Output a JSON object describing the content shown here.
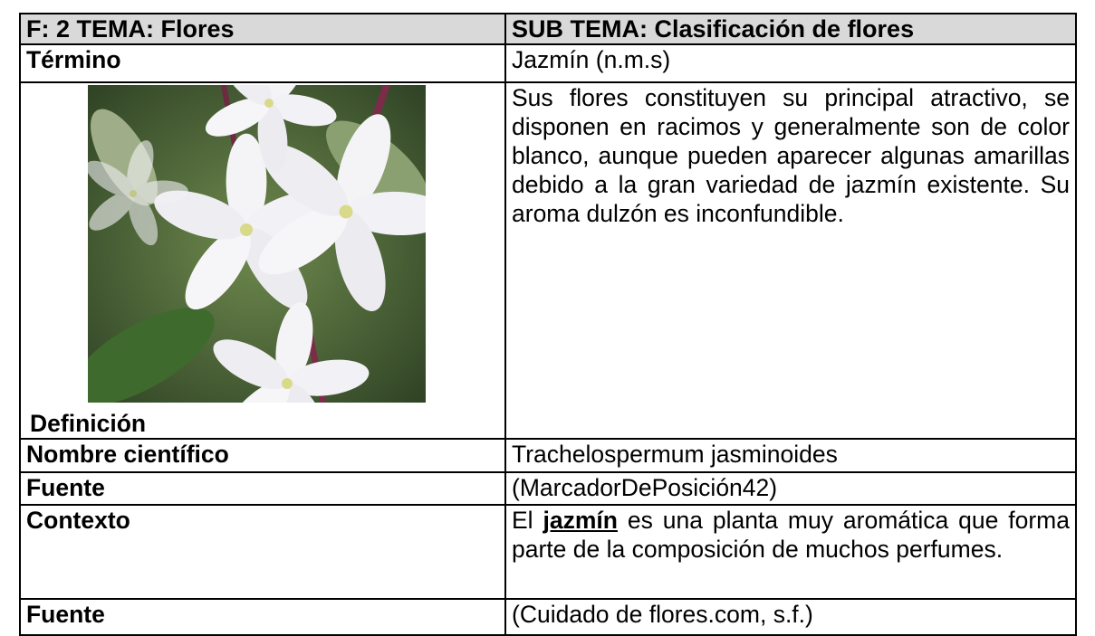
{
  "table": {
    "rows": [
      [
        "F: 2  TEMA: Flores",
        "SUB TEMA: Clasificación de flores"
      ],
      [
        "Término",
        "Jazmín (n.m.s)"
      ],
      [
        "Definición",
        "Sus flores constituyen su principal atractivo, se disponen en racimos y generalmente son de color blanco, aunque pueden aparecer algunas amarillas debido a la gran variedad de jazmín existente. Su aroma dulzón es inconfundible."
      ],
      [
        "Nombre científico",
        "Trachelospermum jasminoides"
      ],
      [
        "Fuente",
        "(MarcadorDePosición42)"
      ],
      [
        "Contexto",
        [
          "El ",
          "jazmín",
          " es una planta muy aromática que forma parte de la composición de muchos perfumes."
        ]
      ],
      [
        "Fuente",
        "(Cuidado de flores.com, s.f.)"
      ]
    ]
  }
}
